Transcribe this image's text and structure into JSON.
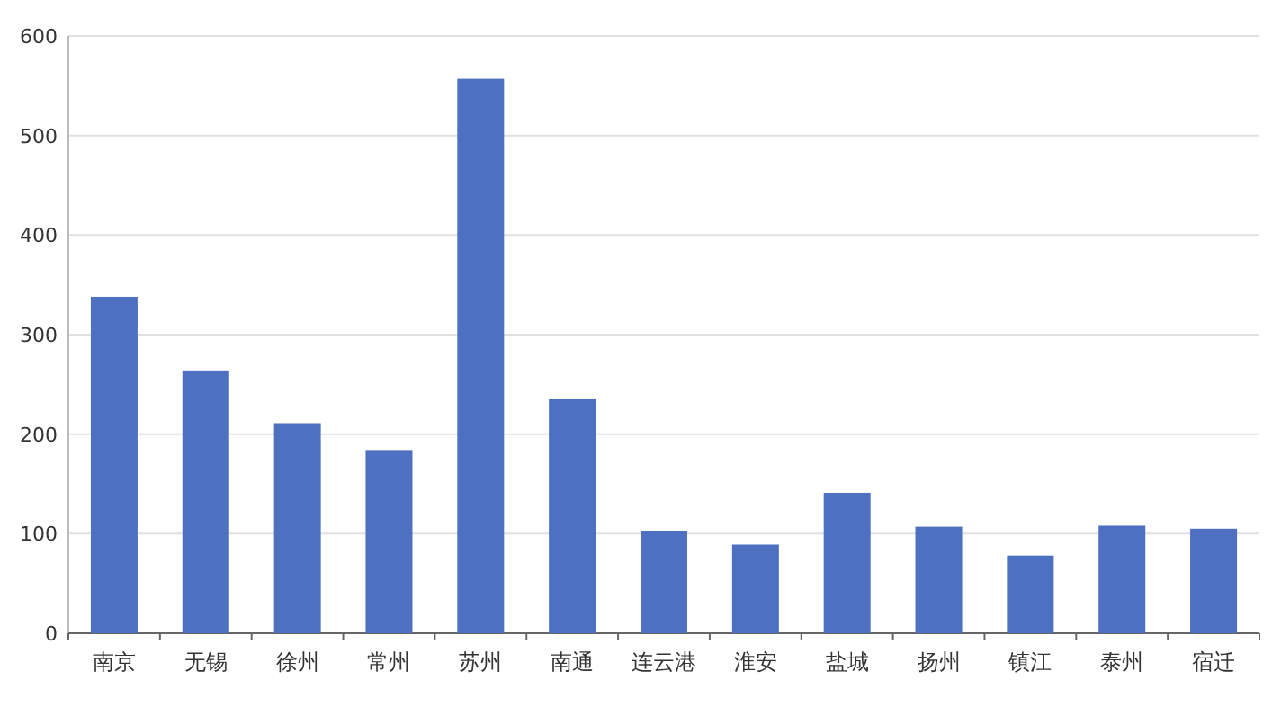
{
  "chart_data": {
    "type": "bar",
    "categories": [
      "南京",
      "无锡",
      "徐州",
      "常州",
      "苏州",
      "南通",
      "连云港",
      "淮安",
      "盐城",
      "扬州",
      "镇江",
      "泰州",
      "宿迁"
    ],
    "values": [
      338,
      264,
      211,
      184,
      557,
      235,
      103,
      89,
      141,
      107,
      78,
      108,
      105
    ],
    "color": "#4e70c0",
    "ylim": [
      0,
      600
    ],
    "yticks": [
      0,
      100,
      200,
      300,
      400,
      500,
      600
    ],
    "grid": "y"
  }
}
